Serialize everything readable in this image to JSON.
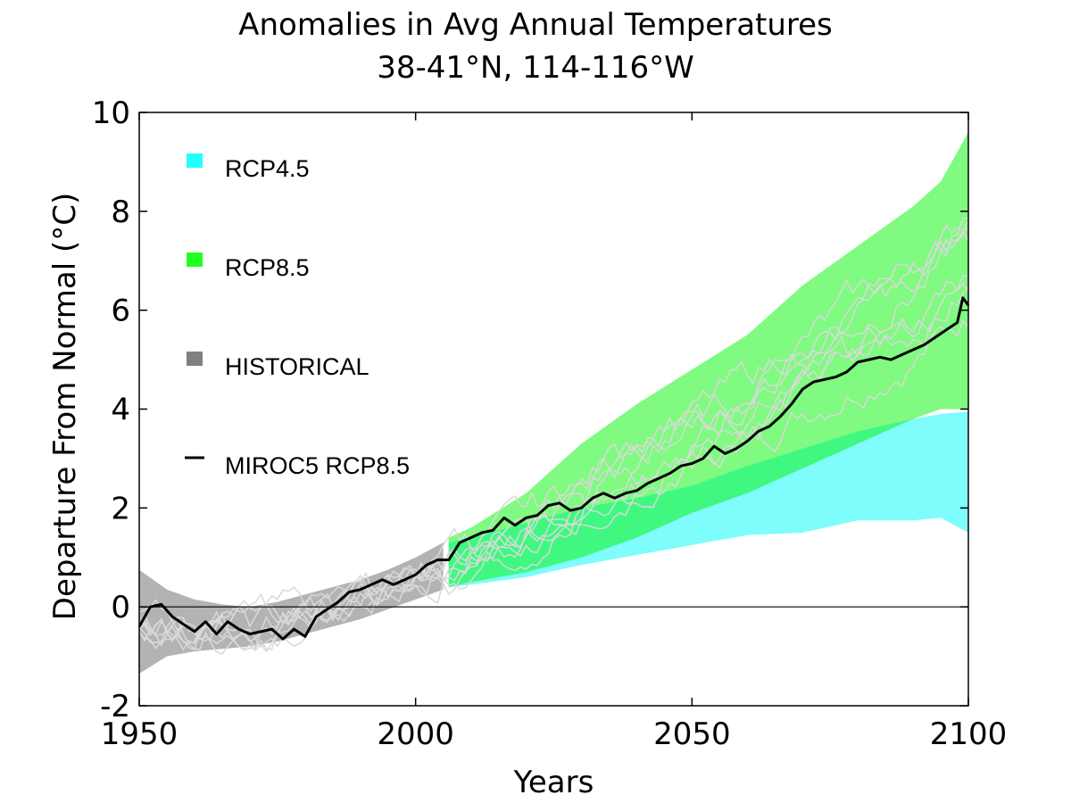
{
  "chart_data": {
    "type": "area",
    "title": "Anomalies in Avg Annual Temperatures",
    "subtitle": "38-41°N, 114-116°W",
    "xlabel": "Years",
    "ylabel": "Departure From Normal (°C)",
    "xlim": [
      1950,
      2100
    ],
    "ylim": [
      -2,
      10
    ],
    "xticks": [
      1950,
      2000,
      2050,
      2100
    ],
    "yticks": [
      -2,
      0,
      2,
      4,
      6,
      8,
      10
    ],
    "grid": false,
    "legend_position": "top-left",
    "legend": [
      {
        "label": "RCP4.5",
        "color": "#22ffff",
        "marker": "square"
      },
      {
        "label": "RCP8.5",
        "color": "#22ff22",
        "marker": "square"
      },
      {
        "label": "HISTORICAL",
        "color": "#808080",
        "marker": "square"
      },
      {
        "label": "MIROC5 RCP8.5",
        "color": "#000000",
        "marker": "line"
      }
    ],
    "series": [
      {
        "name": "HISTORICAL",
        "kind": "band",
        "color": "#b3b3b3",
        "x": [
          1950,
          1955,
          1960,
          1965,
          1970,
          1975,
          1980,
          1985,
          1990,
          1995,
          2000,
          2005
        ],
        "lower": [
          -1.35,
          -1.0,
          -0.9,
          -0.85,
          -0.8,
          -0.7,
          -0.55,
          -0.4,
          -0.25,
          -0.05,
          0.15,
          0.35
        ],
        "upper": [
          0.75,
          0.35,
          0.15,
          0.05,
          0.0,
          0.1,
          0.25,
          0.4,
          0.55,
          0.75,
          1.0,
          1.3
        ]
      },
      {
        "name": "RCP4.5",
        "kind": "band",
        "color": "#7ffcfc",
        "x": [
          2006,
          2010,
          2020,
          2030,
          2040,
          2050,
          2060,
          2070,
          2080,
          2090,
          2095,
          2100
        ],
        "lower": [
          0.4,
          0.45,
          0.6,
          0.85,
          1.05,
          1.25,
          1.45,
          1.5,
          1.75,
          1.75,
          1.8,
          1.5
        ],
        "upper": [
          1.3,
          1.4,
          1.7,
          2.0,
          2.2,
          2.45,
          2.85,
          3.2,
          3.55,
          3.8,
          3.9,
          3.95
        ]
      },
      {
        "name": "RCP8.5",
        "kind": "band",
        "color": "#80fa80",
        "overlap_color": "#40f880",
        "x": [
          2006,
          2010,
          2020,
          2030,
          2040,
          2050,
          2060,
          2070,
          2080,
          2090,
          2095,
          2100
        ],
        "lower": [
          0.4,
          0.5,
          0.7,
          1.0,
          1.4,
          1.9,
          2.3,
          2.8,
          3.3,
          3.8,
          4.0,
          4.0
        ],
        "upper": [
          1.4,
          1.6,
          2.3,
          3.3,
          4.1,
          4.8,
          5.5,
          6.5,
          7.3,
          8.1,
          8.6,
          9.6
        ]
      },
      {
        "name": "MIROC5 RCP8.5",
        "kind": "line",
        "color": "#000000",
        "x": [
          1950,
          1952,
          1954,
          1956,
          1958,
          1960,
          1962,
          1964,
          1966,
          1968,
          1970,
          1972,
          1974,
          1976,
          1978,
          1980,
          1982,
          1984,
          1986,
          1988,
          1990,
          1992,
          1994,
          1996,
          1998,
          2000,
          2002,
          2004,
          2006,
          2008,
          2010,
          2012,
          2014,
          2016,
          2018,
          2020,
          2022,
          2024,
          2026,
          2028,
          2030,
          2032,
          2034,
          2036,
          2038,
          2040,
          2042,
          2044,
          2046,
          2048,
          2050,
          2052,
          2054,
          2056,
          2058,
          2060,
          2062,
          2064,
          2066,
          2068,
          2070,
          2072,
          2074,
          2076,
          2078,
          2080,
          2082,
          2084,
          2086,
          2088,
          2090,
          2092,
          2094,
          2096,
          2098,
          2099,
          2100
        ],
        "values": [
          -0.4,
          0.0,
          0.05,
          -0.2,
          -0.35,
          -0.5,
          -0.3,
          -0.55,
          -0.3,
          -0.45,
          -0.55,
          -0.5,
          -0.45,
          -0.65,
          -0.45,
          -0.6,
          -0.2,
          -0.05,
          0.1,
          0.3,
          0.35,
          0.45,
          0.55,
          0.45,
          0.55,
          0.65,
          0.85,
          0.95,
          0.95,
          1.3,
          1.4,
          1.5,
          1.55,
          1.8,
          1.65,
          1.8,
          1.85,
          2.05,
          2.1,
          1.95,
          2.0,
          2.2,
          2.3,
          2.2,
          2.3,
          2.35,
          2.5,
          2.6,
          2.7,
          2.85,
          2.9,
          3.0,
          3.25,
          3.1,
          3.2,
          3.35,
          3.55,
          3.65,
          3.85,
          4.1,
          4.4,
          4.55,
          4.6,
          4.65,
          4.75,
          4.95,
          5.0,
          5.05,
          5.0,
          5.1,
          5.2,
          5.3,
          5.45,
          5.6,
          5.75,
          6.25,
          6.1
        ]
      }
    ],
    "ensemble_lines": {
      "color": "#d9d9d9",
      "description_kind": "multi-model ensemble members (light gray lines)",
      "count": 8
    }
  }
}
